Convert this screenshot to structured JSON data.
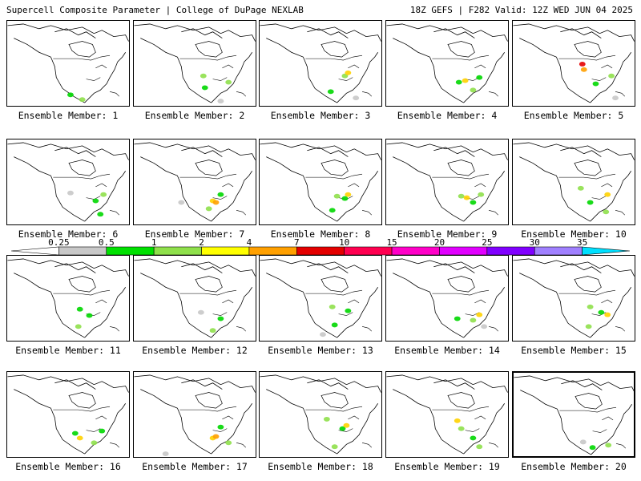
{
  "header": {
    "title": "Supercell Composite Parameter | College of DuPage NEXLAB",
    "run_info": "18Z GEFS | F282 Valid: 12Z WED JUN 04 2025"
  },
  "members": [
    {
      "label": "Ensemble Member: 1",
      "blobs": [
        [
          "#8fe04b",
          95,
          100
        ],
        [
          "#00d700",
          80,
          94
        ]
      ]
    },
    {
      "label": "Ensemble Member: 2",
      "blobs": [
        [
          "#8fe04b",
          88,
          70
        ],
        [
          "#8fe04b",
          120,
          78
        ],
        [
          "#c8c8c8",
          110,
          102
        ],
        [
          "#00d700",
          90,
          85
        ]
      ]
    },
    {
      "label": "Ensemble Member: 3",
      "blobs": [
        [
          "#8fe04b",
          108,
          70
        ],
        [
          "#ffd200",
          112,
          66
        ],
        [
          "#00d700",
          90,
          90
        ],
        [
          "#c8c8c8",
          122,
          98
        ]
      ]
    },
    {
      "label": "Ensemble Member: 4",
      "blobs": [
        [
          "#00d700",
          92,
          78
        ],
        [
          "#ffd200",
          100,
          76
        ],
        [
          "#8fe04b",
          110,
          88
        ],
        [
          "#00d700",
          118,
          72
        ]
      ]
    },
    {
      "label": "Ensemble Member: 5",
      "blobs": [
        [
          "#e40000",
          88,
          55
        ],
        [
          "#ffa000",
          90,
          62
        ],
        [
          "#8fe04b",
          125,
          70
        ],
        [
          "#c8c8c8",
          130,
          98
        ],
        [
          "#00d700",
          105,
          80
        ]
      ]
    },
    {
      "label": "Ensemble Member: 6",
      "blobs": [
        [
          "#8fe04b",
          122,
          70
        ],
        [
          "#00d700",
          112,
          78
        ],
        [
          "#c8c8c8",
          80,
          68
        ],
        [
          "#00d700",
          118,
          95
        ]
      ]
    },
    {
      "label": "Ensemble Member: 7",
      "blobs": [
        [
          "#ffd200",
          100,
          78
        ],
        [
          "#ffa000",
          104,
          80
        ],
        [
          "#00d700",
          110,
          70
        ],
        [
          "#8fe04b",
          95,
          88
        ],
        [
          "#c8c8c8",
          60,
          80
        ]
      ]
    },
    {
      "label": "Ensemble Member: 8",
      "blobs": [
        [
          "#8fe04b",
          98,
          72
        ],
        [
          "#00d700",
          108,
          75
        ],
        [
          "#ffd200",
          112,
          70
        ],
        [
          "#00d700",
          92,
          90
        ]
      ]
    },
    {
      "label": "Ensemble Member: 9",
      "blobs": [
        [
          "#8fe04b",
          95,
          72
        ],
        [
          "#ffd200",
          102,
          74
        ],
        [
          "#00d700",
          110,
          80
        ],
        [
          "#8fe04b",
          120,
          70
        ]
      ]
    },
    {
      "label": "Ensemble Member: 10",
      "blobs": [
        [
          "#8fe04b",
          86,
          62
        ],
        [
          "#00d700",
          98,
          80
        ],
        [
          "#ffd200",
          120,
          70
        ],
        [
          "#8fe04b",
          118,
          92
        ]
      ]
    },
    {
      "label": "Ensemble Member: 11",
      "blobs": [
        [
          "#00d700",
          104,
          76
        ],
        [
          "#8fe04b",
          90,
          90
        ],
        [
          "#00d700",
          92,
          68
        ]
      ]
    },
    {
      "label": "Ensemble Member: 12",
      "blobs": [
        [
          "#c8c8c8",
          85,
          72
        ],
        [
          "#00d700",
          110,
          80
        ],
        [
          "#8fe04b",
          100,
          95
        ]
      ]
    },
    {
      "label": "Ensemble Member: 13",
      "blobs": [
        [
          "#8fe04b",
          92,
          65
        ],
        [
          "#00d700",
          112,
          70
        ],
        [
          "#c8c8c8",
          80,
          100
        ],
        [
          "#00d700",
          95,
          88
        ]
      ]
    },
    {
      "label": "Ensemble Member: 14",
      "blobs": [
        [
          "#00d700",
          90,
          80
        ],
        [
          "#8fe04b",
          110,
          82
        ],
        [
          "#ffd200",
          118,
          75
        ],
        [
          "#c8c8c8",
          124,
          90
        ]
      ]
    },
    {
      "label": "Ensemble Member: 15",
      "blobs": [
        [
          "#8fe04b",
          98,
          65
        ],
        [
          "#00d700",
          112,
          72
        ],
        [
          "#ffd200",
          120,
          75
        ],
        [
          "#8fe04b",
          96,
          90
        ]
      ]
    },
    {
      "label": "Ensemble Member: 16",
      "blobs": [
        [
          "#ffd200",
          92,
          84
        ],
        [
          "#00d700",
          86,
          78
        ],
        [
          "#8fe04b",
          110,
          90
        ],
        [
          "#00d700",
          120,
          75
        ]
      ]
    },
    {
      "label": "Ensemble Member: 17",
      "blobs": [
        [
          "#ffd200",
          100,
          84
        ],
        [
          "#ffa000",
          104,
          82
        ],
        [
          "#00d700",
          110,
          70
        ],
        [
          "#c8c8c8",
          40,
          104
        ],
        [
          "#8fe04b",
          120,
          90
        ]
      ]
    },
    {
      "label": "Ensemble Member: 18",
      "blobs": [
        [
          "#8fe04b",
          85,
          60
        ],
        [
          "#00d700",
          105,
          72
        ],
        [
          "#ffd200",
          110,
          68
        ],
        [
          "#8fe04b",
          95,
          95
        ]
      ]
    },
    {
      "label": "Ensemble Member: 19",
      "blobs": [
        [
          "#ffd200",
          90,
          62
        ],
        [
          "#8fe04b",
          95,
          72
        ],
        [
          "#00d700",
          110,
          84
        ],
        [
          "#8fe04b",
          118,
          95
        ]
      ]
    },
    {
      "label": "Ensemble Member: 20",
      "blobs": [
        [
          "#c8c8c8",
          88,
          88
        ],
        [
          "#00d700",
          100,
          95
        ],
        [
          "#8fe04b",
          120,
          92
        ]
      ]
    }
  ],
  "colorbar": {
    "labels": [
      "0.25",
      "0.5",
      "1",
      "2",
      "4",
      "7",
      "10",
      "15",
      "20",
      "25",
      "30",
      "35"
    ],
    "colors": [
      "#ffffff",
      "#c8c8c8",
      "#00e000",
      "#8fe04b",
      "#ffff00",
      "#ffa000",
      "#e40000",
      "#ff0050",
      "#ff00c8",
      "#e100ff",
      "#8000ff",
      "#a080ff",
      "#00e0ff"
    ]
  }
}
